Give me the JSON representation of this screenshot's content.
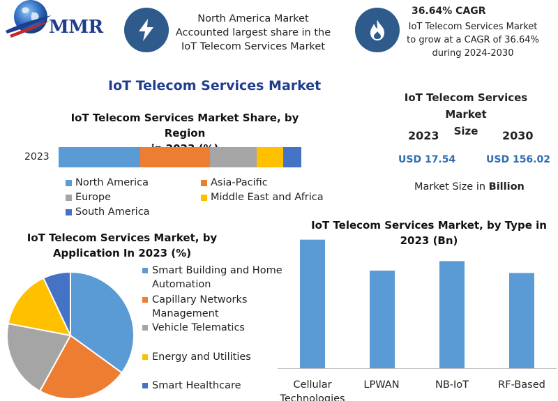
{
  "header": {
    "logo_text": "MMR",
    "region_text_lines": [
      "North America Market",
      "Accounted largest share in the",
      "IoT Telecom Services Market"
    ],
    "cagr_title": "36.64% CAGR",
    "cagr_lines": [
      "IoT Telecom Services Market",
      "to grow at a CAGR of 36.64%",
      "during 2024-2030"
    ],
    "icons": [
      "bolt-icon",
      "flame-icon"
    ]
  },
  "main_title": "IoT Telecom Services Market",
  "size_panel": {
    "title_lines": [
      "IoT Telecom Services Market",
      "Size"
    ],
    "years": [
      "2023",
      "2030"
    ],
    "values": [
      "USD 17.54",
      "USD 156.02"
    ],
    "note_prefix": "Market Size in",
    "note_unit": "Billion"
  },
  "colors": {
    "blue": "#5b9bd5",
    "orange": "#ed7d31",
    "gray": "#a5a5a5",
    "yellow": "#ffc000",
    "dark_blue": "#4472c4",
    "badge": "#2e5b8c",
    "title_blue": "#1f3c8e",
    "value_blue": "#2e6db0"
  },
  "chart_data": [
    {
      "type": "bar",
      "orientation": "horizontal-stacked",
      "title": "IoT Telecom Services Market Share, by Region in 2023 (%)",
      "title_lines": [
        "IoT Telecom Services Market Share, by Region",
        "in 2023 (%)"
      ],
      "categories": [
        "2023"
      ],
      "series": [
        {
          "name": "North America",
          "values": [
            33.5
          ],
          "color": "#5b9bd5"
        },
        {
          "name": "Asia-Pacific",
          "values": [
            29
          ],
          "color": "#ed7d31"
        },
        {
          "name": "Europe",
          "values": [
            19
          ],
          "color": "#a5a5a5"
        },
        {
          "name": "Middle East and Africa",
          "values": [
            11
          ],
          "color": "#ffc000"
        },
        {
          "name": "South America",
          "values": [
            7.5
          ],
          "color": "#4472c4"
        }
      ],
      "legend": "bottom"
    },
    {
      "type": "pie",
      "title": "IoT Telecom Services Market, by Application In 2023 (%)",
      "title_lines": [
        "IoT Telecom Services Market, by",
        "Application In 2023 (%)"
      ],
      "slices": [
        {
          "label": "Smart Building and Home Automation",
          "label_lines": [
            "Smart Building and Home",
            "Automation"
          ],
          "value": 35,
          "color": "#5b9bd5"
        },
        {
          "label": "Capillary Networks Management",
          "label_lines": [
            "Capillary Networks",
            "Management"
          ],
          "value": 23,
          "color": "#ed7d31"
        },
        {
          "label": "Vehicle Telematics",
          "label_lines": [
            "Vehicle Telematics"
          ],
          "value": 20,
          "color": "#a5a5a5"
        },
        {
          "label": "Energy and Utilities",
          "label_lines": [
            "Energy and Utilities"
          ],
          "value": 15,
          "color": "#ffc000"
        },
        {
          "label": "Smart Healthcare",
          "label_lines": [
            "Smart Healthcare"
          ],
          "value": 7,
          "color": "#4472c4"
        }
      ],
      "legend": "right"
    },
    {
      "type": "bar",
      "title": "IoT Telecom Services Market, by Type in 2023 (Bn)",
      "title_lines": [
        "IoT Telecom Services Market, by Type in",
        "2023 (Bn)"
      ],
      "categories": [
        "Cellular Technologies",
        "LPWAN",
        "NB-IoT",
        "RF-Based"
      ],
      "category_lines": [
        [
          "Cellular",
          "Technologies"
        ],
        [
          "LPWAN"
        ],
        [
          "NB-IoT"
        ],
        [
          "RF-Based"
        ]
      ],
      "values": [
        5.4,
        4.1,
        4.5,
        4.0
      ],
      "color": "#5b9bd5",
      "ylim": [
        0,
        5.8
      ],
      "grid": false
    }
  ]
}
